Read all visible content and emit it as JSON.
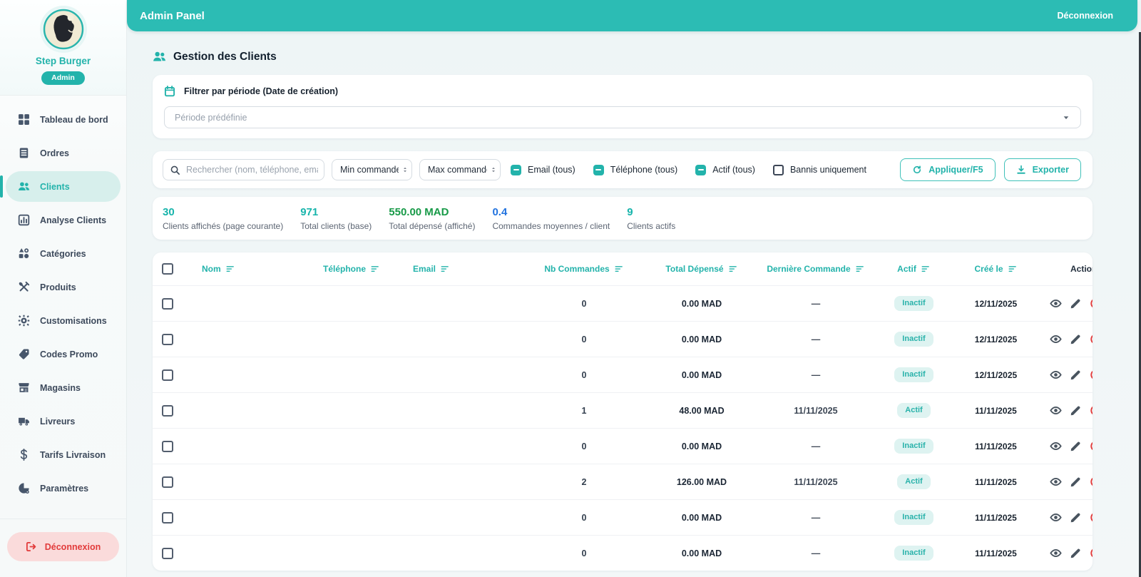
{
  "colors": {
    "accent": "#23b3ab",
    "header_bg": "#2cbcb4",
    "badge_bg": "#def3f1",
    "badge_text": "#29b2aa",
    "danger": "#e23b3b",
    "stat_teal": "#17b4ab",
    "stat_green": "#189a48",
    "stat_blue": "#2273df"
  },
  "topbar": {
    "title": "Admin Panel",
    "logout_label": "Déconnexion"
  },
  "sidebar": {
    "profile": {
      "name": "Step Burger",
      "role_badge": "Admin"
    },
    "items": [
      {
        "label": "Tableau de bord",
        "icon": "dashboard-icon",
        "active": false
      },
      {
        "label": "Ordres",
        "icon": "orders-icon",
        "active": false
      },
      {
        "label": "Clients",
        "icon": "clients-icon",
        "active": true
      },
      {
        "label": "Analyse Clients",
        "icon": "analytics-icon",
        "active": false
      },
      {
        "label": "Catégories",
        "icon": "categories-icon",
        "active": false
      },
      {
        "label": "Produits",
        "icon": "products-icon",
        "active": false
      },
      {
        "label": "Customisations",
        "icon": "customizations-icon",
        "active": false
      },
      {
        "label": "Codes Promo",
        "icon": "promo-tag-icon",
        "active": false
      },
      {
        "label": "Magasins",
        "icon": "store-icon",
        "active": false
      },
      {
        "label": "Livreurs",
        "icon": "truck-icon",
        "active": false
      },
      {
        "label": "Tarifs Livraison",
        "icon": "dollar-icon",
        "active": false
      },
      {
        "label": "Paramètres",
        "icon": "settings-pie-icon",
        "active": false
      }
    ],
    "logout_label": "Déconnexion"
  },
  "page": {
    "title": "Gestion des Clients",
    "period_filter": {
      "label": "Filtrer par période (Date de création)",
      "select_value": "Période prédéfinie"
    },
    "filters": {
      "search_placeholder": "Rechercher (nom, téléphone, email)",
      "min_placeholder": "Min commandes",
      "max_placeholder": "Max commandes",
      "checkboxes": [
        {
          "label": "Email (tous)",
          "state": "indeterminate"
        },
        {
          "label": "Téléphone (tous)",
          "state": "indeterminate"
        },
        {
          "label": "Actif (tous)",
          "state": "indeterminate"
        },
        {
          "label": "Bannis uniquement",
          "state": "unchecked"
        }
      ],
      "apply_label": "Appliquer/F5",
      "export_label": "Exporter"
    },
    "stats": [
      {
        "value": "30",
        "label": "Clients affichés (page courante)",
        "color": "#17b4ab"
      },
      {
        "value": "971",
        "label": "Total clients (base)",
        "color": "#17b4ab"
      },
      {
        "value": "550.00 MAD",
        "label": "Total dépensé (affiché)",
        "color": "#189a48"
      },
      {
        "value": "0.4",
        "label": "Commandes moyennes / client",
        "color": "#2273df"
      },
      {
        "value": "9",
        "label": "Clients actifs",
        "color": "#17b4ab"
      }
    ],
    "table": {
      "columns": [
        {
          "label": "Nom",
          "sortable": true
        },
        {
          "label": "Téléphone",
          "sortable": true
        },
        {
          "label": "Email",
          "sortable": true
        },
        {
          "label": "Nb Commandes",
          "sortable": true
        },
        {
          "label": "Total Dépensé",
          "sortable": true
        },
        {
          "label": "Dernière Commande",
          "sortable": true
        },
        {
          "label": "Actif",
          "sortable": true
        },
        {
          "label": "Créé le",
          "sortable": true
        },
        {
          "label": "Actions",
          "sortable": false
        }
      ],
      "rows": [
        {
          "nom": "",
          "telephone": "",
          "email": "",
          "nb_commandes": "0",
          "total_depense": "0.00 MAD",
          "derniere_commande": "—",
          "statut": "Inactif",
          "cree_le": "12/11/2025"
        },
        {
          "nom": "",
          "telephone": "",
          "email": "",
          "nb_commandes": "0",
          "total_depense": "0.00 MAD",
          "derniere_commande": "—",
          "statut": "Inactif",
          "cree_le": "12/11/2025"
        },
        {
          "nom": "",
          "telephone": "",
          "email": "",
          "nb_commandes": "0",
          "total_depense": "0.00 MAD",
          "derniere_commande": "—",
          "statut": "Inactif",
          "cree_le": "12/11/2025"
        },
        {
          "nom": "",
          "telephone": "",
          "email": "",
          "nb_commandes": "1",
          "total_depense": "48.00 MAD",
          "derniere_commande": "11/11/2025",
          "statut": "Actif",
          "cree_le": "11/11/2025"
        },
        {
          "nom": "",
          "telephone": "",
          "email": "",
          "nb_commandes": "0",
          "total_depense": "0.00 MAD",
          "derniere_commande": "—",
          "statut": "Inactif",
          "cree_le": "11/11/2025"
        },
        {
          "nom": "",
          "telephone": "",
          "email": "",
          "nb_commandes": "2",
          "total_depense": "126.00 MAD",
          "derniere_commande": "11/11/2025",
          "statut": "Actif",
          "cree_le": "11/11/2025"
        },
        {
          "nom": "",
          "telephone": "",
          "email": "",
          "nb_commandes": "0",
          "total_depense": "0.00 MAD",
          "derniere_commande": "—",
          "statut": "Inactif",
          "cree_le": "11/11/2025"
        },
        {
          "nom": "",
          "telephone": "",
          "email": "",
          "nb_commandes": "0",
          "total_depense": "0.00 MAD",
          "derniere_commande": "—",
          "statut": "Inactif",
          "cree_le": "11/11/2025"
        }
      ]
    }
  }
}
